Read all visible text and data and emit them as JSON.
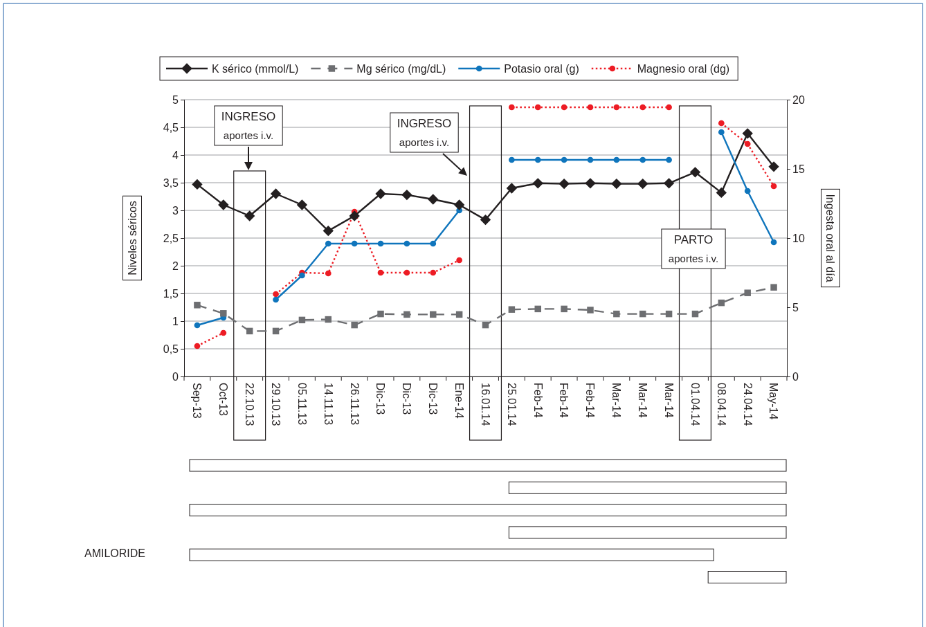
{
  "chart_data": {
    "type": "line",
    "categories": [
      "Sep-13",
      "Oct-13",
      "22.10.13",
      "29.10.13",
      "05.11.13",
      "14.11.13",
      "26.11.13",
      "Dic-13",
      "Dic-13",
      "Dic-13",
      "Ene-14",
      "16.01.14",
      "25.01.14",
      "Feb-14",
      "Feb-14",
      "Feb-14",
      "Mar-14",
      "Mar-14",
      "Mar-14",
      "01.04.14",
      "08.04.14",
      "24.04.14",
      "May-14"
    ],
    "series": [
      {
        "name": "K sérico (mmol/L)",
        "color": "#231f20",
        "marker": "diamond",
        "line_style": "solid",
        "values": [
          3.47,
          3.1,
          2.9,
          3.3,
          3.1,
          2.63,
          2.9,
          3.3,
          3.28,
          3.2,
          3.1,
          2.83,
          3.4,
          3.49,
          3.48,
          3.49,
          3.48,
          3.48,
          3.49,
          3.69,
          3.32,
          4.39,
          3.79
        ]
      },
      {
        "name": "Mg sérico (mg/dL)",
        "color": "#6d6e71",
        "marker": "square",
        "line_style": "dashed",
        "values": [
          1.29,
          1.14,
          0.82,
          0.82,
          1.02,
          1.03,
          0.93,
          1.13,
          1.12,
          1.12,
          1.12,
          0.93,
          1.21,
          1.22,
          1.22,
          1.2,
          1.13,
          1.13,
          1.13,
          1.13,
          1.33,
          1.51,
          1.61
        ]
      },
      {
        "name": "Potasio oral (g)",
        "color": "#0f75bc",
        "marker": "circle",
        "line_style": "solid",
        "axis": "y2",
        "values": [
          3.7,
          4.25,
          null,
          5.55,
          7.3,
          9.6,
          9.6,
          9.6,
          9.6,
          9.6,
          12,
          null,
          15.65,
          15.65,
          15.65,
          15.65,
          15.65,
          15.65,
          15.65,
          null,
          17.65,
          13.4,
          9.7
        ]
      },
      {
        "name": "Magnesio oral (dg)",
        "color": "#ed1c24",
        "marker": "circle",
        "line_style": "dotted",
        "axis": "y2",
        "values": [
          2.2,
          3.15,
          null,
          5.95,
          7.5,
          7.45,
          11.9,
          7.5,
          7.5,
          7.5,
          8.4,
          null,
          19.45,
          19.45,
          19.45,
          19.45,
          19.45,
          19.45,
          19.45,
          null,
          18.3,
          16.8,
          13.75
        ]
      }
    ],
    "ylim": [
      0,
      5
    ],
    "yticks": [
      0,
      {
        "value": 0.5,
        "label": "0,5"
      },
      1,
      {
        "value": 1.5,
        "label": "1,5"
      },
      2,
      {
        "value": 2.5,
        "label": "2,5"
      },
      3,
      {
        "value": 3.5,
        "label": "3,5"
      },
      4,
      {
        "value": 4.5,
        "label": "4,5"
      },
      5
    ],
    "y2lim": [
      0,
      20
    ],
    "y2ticks": [
      0,
      5,
      10,
      15,
      20
    ],
    "ylabel": "Niveles séricos",
    "y2label": "Ingesta oral al día",
    "grid": "y",
    "legend": "top",
    "annotations": [
      "INGRESO\naportes i.v.",
      "INGRESO\naportes i.v.",
      "PARTO\naportes i.v.",
      "AMILORIDE"
    ]
  }
}
